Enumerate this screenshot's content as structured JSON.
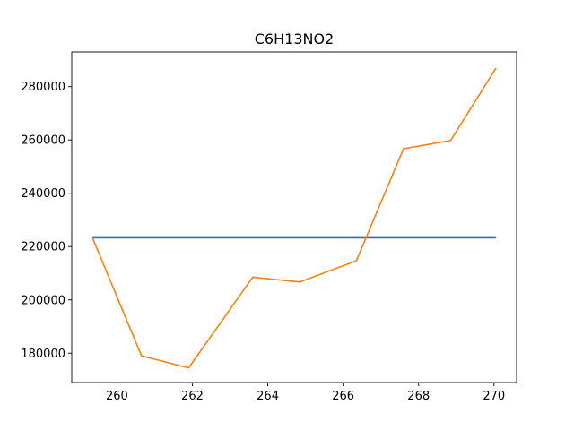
{
  "chart_data": {
    "type": "line",
    "title": "C6H13NO2",
    "xlabel": "",
    "ylabel": "",
    "xlim": [
      258.8,
      270.6
    ],
    "ylim": [
      169000,
      293000
    ],
    "x_ticks": [
      260,
      262,
      264,
      266,
      268,
      270
    ],
    "x_tick_labels": [
      "260",
      "262",
      "264",
      "266",
      "268",
      "270"
    ],
    "y_ticks": [
      180000,
      200000,
      220000,
      240000,
      260000,
      280000
    ],
    "y_tick_labels": [
      "180000",
      "200000",
      "220000",
      "240000",
      "260000",
      "280000"
    ],
    "grid": false,
    "series": [
      {
        "color": "#1f77b4",
        "x": [
          259.35,
          270.05
        ],
        "y": [
          223300,
          223300
        ]
      },
      {
        "color": "#ff7f0e",
        "x": [
          259.35,
          260.65,
          261.9,
          263.6,
          264.85,
          266.35,
          267.6,
          268.85,
          270.05
        ],
        "y": [
          223300,
          179000,
          174500,
          208500,
          206700,
          214700,
          256700,
          259800,
          286900
        ]
      }
    ]
  }
}
